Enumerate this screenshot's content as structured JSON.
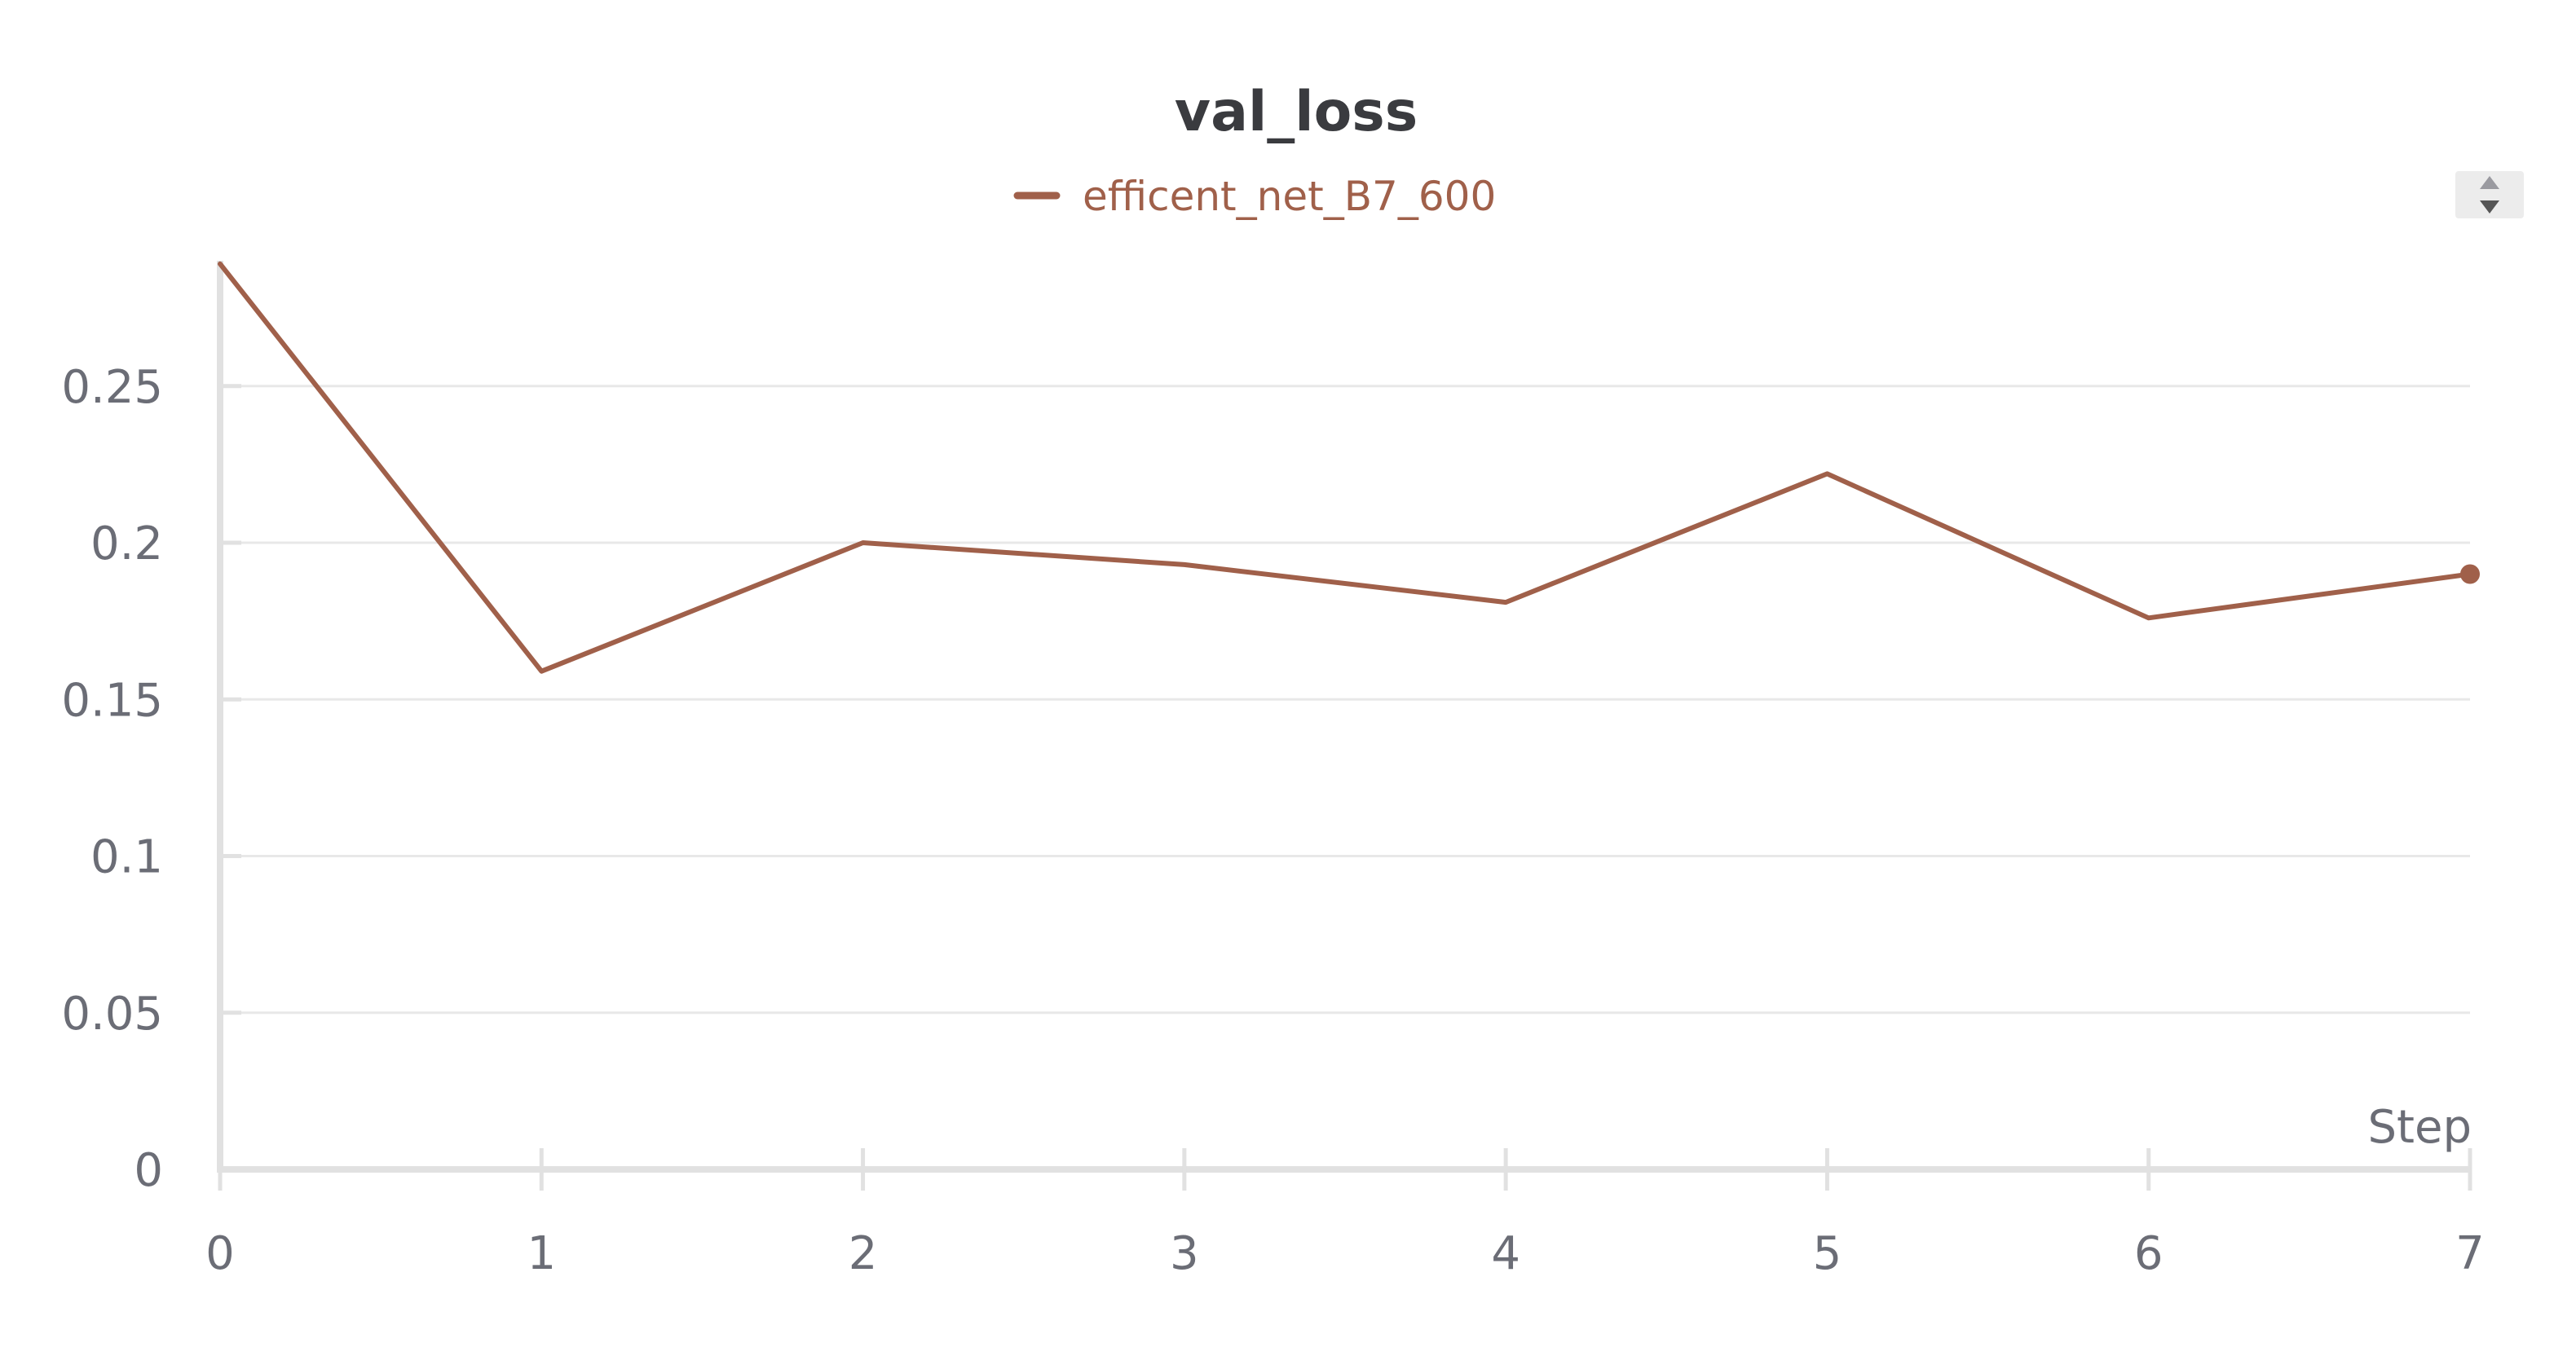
{
  "chart_data": {
    "type": "line",
    "title": "val_loss",
    "xlabel": "Step",
    "ylabel": "",
    "x": [
      0,
      1,
      2,
      3,
      4,
      5,
      6,
      7
    ],
    "x_tick_labels": [
      "0",
      "1",
      "2",
      "3",
      "4",
      "5",
      "6",
      "7"
    ],
    "y_tick_values": [
      0,
      0.05,
      0.1,
      0.15,
      0.2,
      0.25
    ],
    "y_tick_labels": [
      "0",
      "0.05",
      "0.1",
      "0.15",
      "0.2",
      "0.25"
    ],
    "xlim": [
      0,
      7
    ],
    "ylim": [
      0,
      0.29
    ],
    "grid": true,
    "legend_position": "top-center",
    "series": [
      {
        "name": "efficent_net_B7_600",
        "color": "#a0604a",
        "values": [
          0.289,
          0.159,
          0.2,
          0.193,
          0.181,
          0.222,
          0.176,
          0.19
        ]
      }
    ]
  },
  "controls": {
    "legend_scroll_icon": "up-down-arrows-icon"
  }
}
